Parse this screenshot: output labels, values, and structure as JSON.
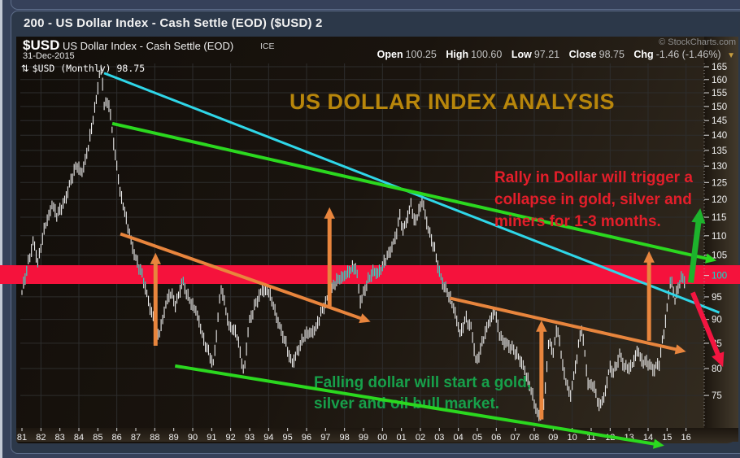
{
  "window": {
    "title": "200 - US Dollar Index - Cash Settle (EOD) ($USD) 2"
  },
  "header": {
    "symbol": "$USD",
    "name": "US Dollar Index - Cash Settle (EOD)",
    "exchange": "ICE",
    "date": "31-Dec-2015",
    "copyright": "© StockCharts.com",
    "quote": {
      "open_label": "Open",
      "open": "100.25",
      "high_label": "High",
      "high": "100.60",
      "low_label": "Low",
      "low": "97.21",
      "close_label": "Close",
      "close": "98.75",
      "chg_label": "Chg",
      "chg": "-1.46 (-1.46%)",
      "caret_icon": "▼"
    }
  },
  "legend": {
    "icon": "⇅",
    "text": "$USD (Monthly) 98.75"
  },
  "annotations": {
    "title": "US DOLLAR INDEX ANALYSIS",
    "red_note_lines": [
      "Rally in Dollar will trigger a",
      "collapse in gold, silver and",
      "miners for 1-3 months."
    ],
    "green_note_lines": [
      "Falling dollar will start a gold,",
      "silver and oil bull market."
    ]
  },
  "colors": {
    "gold_text": "#b8860b",
    "red_text": "#e41e2a",
    "green_text": "#17a04a",
    "band": "#f5123c",
    "cyan": "#2fd6e8",
    "green_line": "#2bd81f",
    "green_arrow": "#1db32c",
    "orange": "#e8853d",
    "red_arrow": "#f31540",
    "bars": "#ededed",
    "bars_in_band": "#25e3cc",
    "grid": "#2d2d2d",
    "axis_text": "#f0f0f0",
    "axis_text_highlight": "#00e5d0"
  },
  "chart_data": {
    "type": "ohlc-bar",
    "title": "US Dollar Index - Cash Settle (EOD) - Monthly",
    "y_scale": "log",
    "y_ticks": [
      165,
      160,
      155,
      150,
      145,
      140,
      135,
      130,
      125,
      120,
      115,
      110,
      105,
      100,
      95,
      90,
      85,
      80,
      75
    ],
    "x_tick_labels": [
      "81",
      "82",
      "83",
      "84",
      "85",
      "86",
      "87",
      "88",
      "89",
      "90",
      "91",
      "92",
      "93",
      "94",
      "95",
      "96",
      "97",
      "98",
      "99",
      "00",
      "01",
      "02",
      "03",
      "04",
      "05",
      "06",
      "07",
      "08",
      "09",
      "10",
      "11",
      "12",
      "13",
      "14",
      "15",
      "16"
    ],
    "support_band": {
      "from": 98,
      "to": 102.5
    },
    "series": [
      {
        "name": "$USD monthly close (anchor points: [year, price])",
        "anchors": [
          [
            1981.0,
            96
          ],
          [
            1981.25,
            101
          ],
          [
            1981.6,
            109
          ],
          [
            1981.85,
            103
          ],
          [
            1982.2,
            112
          ],
          [
            1982.6,
            119
          ],
          [
            1982.85,
            115
          ],
          [
            1983.2,
            119
          ],
          [
            1983.6,
            126
          ],
          [
            1983.9,
            130
          ],
          [
            1984.15,
            128
          ],
          [
            1984.5,
            136
          ],
          [
            1984.8,
            147
          ],
          [
            1985.1,
            163
          ],
          [
            1985.2,
            164
          ],
          [
            1985.35,
            149
          ],
          [
            1985.55,
            152
          ],
          [
            1985.85,
            137
          ],
          [
            1986.2,
            121
          ],
          [
            1986.6,
            112
          ],
          [
            1987.0,
            104
          ],
          [
            1987.4,
            99
          ],
          [
            1987.8,
            92
          ],
          [
            1988.2,
            86
          ],
          [
            1988.55,
            93
          ],
          [
            1988.8,
            96
          ],
          [
            1989.1,
            93
          ],
          [
            1989.45,
            99
          ],
          [
            1989.8,
            94
          ],
          [
            1990.2,
            92
          ],
          [
            1990.6,
            85
          ],
          [
            1991.1,
            81
          ],
          [
            1991.5,
            97
          ],
          [
            1991.9,
            89
          ],
          [
            1992.3,
            87
          ],
          [
            1992.7,
            79
          ],
          [
            1992.95,
            89
          ],
          [
            1993.3,
            93
          ],
          [
            1993.65,
            97
          ],
          [
            1994.0,
            96
          ],
          [
            1994.4,
            91
          ],
          [
            1994.8,
            86
          ],
          [
            1995.2,
            81
          ],
          [
            1995.6,
            84
          ],
          [
            1996.0,
            87
          ],
          [
            1996.5,
            88
          ],
          [
            1997.0,
            94
          ],
          [
            1997.5,
            98
          ],
          [
            1997.9,
            100
          ],
          [
            1998.3,
            101
          ],
          [
            1998.6,
            102
          ],
          [
            1998.85,
            94
          ],
          [
            1999.1,
            97
          ],
          [
            1999.5,
            101
          ],
          [
            1999.9,
            101
          ],
          [
            2000.3,
            105
          ],
          [
            2000.7,
            110
          ],
          [
            2000.92,
            115
          ],
          [
            2001.1,
            111
          ],
          [
            2001.5,
            119
          ],
          [
            2001.7,
            113
          ],
          [
            2001.9,
            116
          ],
          [
            2002.1,
            120
          ],
          [
            2002.45,
            111
          ],
          [
            2002.75,
            106
          ],
          [
            2003.05,
            100
          ],
          [
            2003.4,
            96
          ],
          [
            2003.8,
            92
          ],
          [
            2004.1,
            87
          ],
          [
            2004.4,
            90
          ],
          [
            2004.7,
            88
          ],
          [
            2004.95,
            81
          ],
          [
            2005.2,
            84
          ],
          [
            2005.55,
            89
          ],
          [
            2005.9,
            92
          ],
          [
            2006.2,
            86
          ],
          [
            2006.6,
            85
          ],
          [
            2007.0,
            83
          ],
          [
            2007.4,
            81
          ],
          [
            2007.8,
            76
          ],
          [
            2008.2,
            71.5
          ],
          [
            2008.5,
            73
          ],
          [
            2008.8,
            86
          ],
          [
            2009.0,
            83
          ],
          [
            2009.2,
            89
          ],
          [
            2009.55,
            79
          ],
          [
            2009.9,
            75
          ],
          [
            2010.2,
            81
          ],
          [
            2010.5,
            88
          ],
          [
            2010.85,
            77
          ],
          [
            2011.1,
            77
          ],
          [
            2011.4,
            73
          ],
          [
            2011.7,
            75
          ],
          [
            2011.95,
            80
          ],
          [
            2012.2,
            79
          ],
          [
            2012.5,
            83
          ],
          [
            2012.8,
            80
          ],
          [
            2013.1,
            80
          ],
          [
            2013.45,
            84
          ],
          [
            2013.7,
            81
          ],
          [
            2014.0,
            81
          ],
          [
            2014.3,
            80
          ],
          [
            2014.6,
            81
          ],
          [
            2014.9,
            89
          ],
          [
            2015.2,
            100
          ],
          [
            2015.4,
            94
          ],
          [
            2015.6,
            97
          ],
          [
            2015.8,
            100
          ],
          [
            2015.95,
            98.75
          ]
        ]
      }
    ],
    "trend_lines": [
      {
        "name": "cyan-downtrend-line",
        "color_key": "cyan",
        "from": [
          1985.33,
          162.5
        ],
        "to": [
          2017.75,
          91.5
        ],
        "width": 3,
        "head": false
      },
      {
        "name": "green-upper-channel-line",
        "color_key": "green_line",
        "from": [
          1985.76,
          144
        ],
        "to": [
          2017.6,
          103.6
        ],
        "width": 4,
        "head": true,
        "head_size": 13
      },
      {
        "name": "green-lower-support-line",
        "color_key": "green_line",
        "from": [
          1989.07,
          80.5
        ],
        "to": [
          2014.85,
          66.5
        ],
        "width": 4,
        "head": true,
        "head_size": 13
      },
      {
        "name": "orange-upper-channel-line",
        "color_key": "orange",
        "from": [
          1986.19,
          110.5
        ],
        "to": [
          1999.37,
          89.5
        ],
        "width": 4,
        "head": true,
        "head_size": 13
      },
      {
        "name": "orange-lower-channel-line",
        "color_key": "orange",
        "from": [
          2003.56,
          94.7
        ],
        "to": [
          2016.0,
          83.3
        ],
        "width": 4,
        "head": true,
        "head_size": 13
      },
      {
        "name": "orange-up-arrow-1988",
        "color_key": "orange",
        "from": [
          1988.04,
          84.5
        ],
        "to": [
          1988.04,
          105.6
        ],
        "width": 5,
        "head": true,
        "head_size": 14
      },
      {
        "name": "orange-up-arrow-1997",
        "color_key": "orange",
        "from": [
          1997.21,
          92.9
        ],
        "to": [
          1997.21,
          117.8
        ],
        "width": 5,
        "head": true,
        "head_size": 14
      },
      {
        "name": "orange-up-arrow-2008",
        "color_key": "orange",
        "from": [
          2008.38,
          70.8
        ],
        "to": [
          2008.38,
          89.8
        ],
        "width": 5,
        "head": true,
        "head_size": 14
      },
      {
        "name": "orange-up-arrow-2014",
        "color_key": "orange",
        "from": [
          2014.05,
          85.5
        ],
        "to": [
          2014.05,
          106
        ],
        "width": 5,
        "head": true,
        "head_size": 14
      },
      {
        "name": "green-rally-arrow",
        "color_key": "green_arrow",
        "from": [
          2016.25,
          98.3
        ],
        "to": [
          2016.75,
          117.5
        ],
        "width": 7,
        "head": true,
        "head_size": 18
      },
      {
        "name": "red-collapse-arrow",
        "color_key": "red_arrow",
        "from": [
          2016.35,
          96
        ],
        "to": [
          2017.95,
          80.3
        ],
        "width": 6,
        "head": true,
        "head_size": 17
      }
    ]
  }
}
